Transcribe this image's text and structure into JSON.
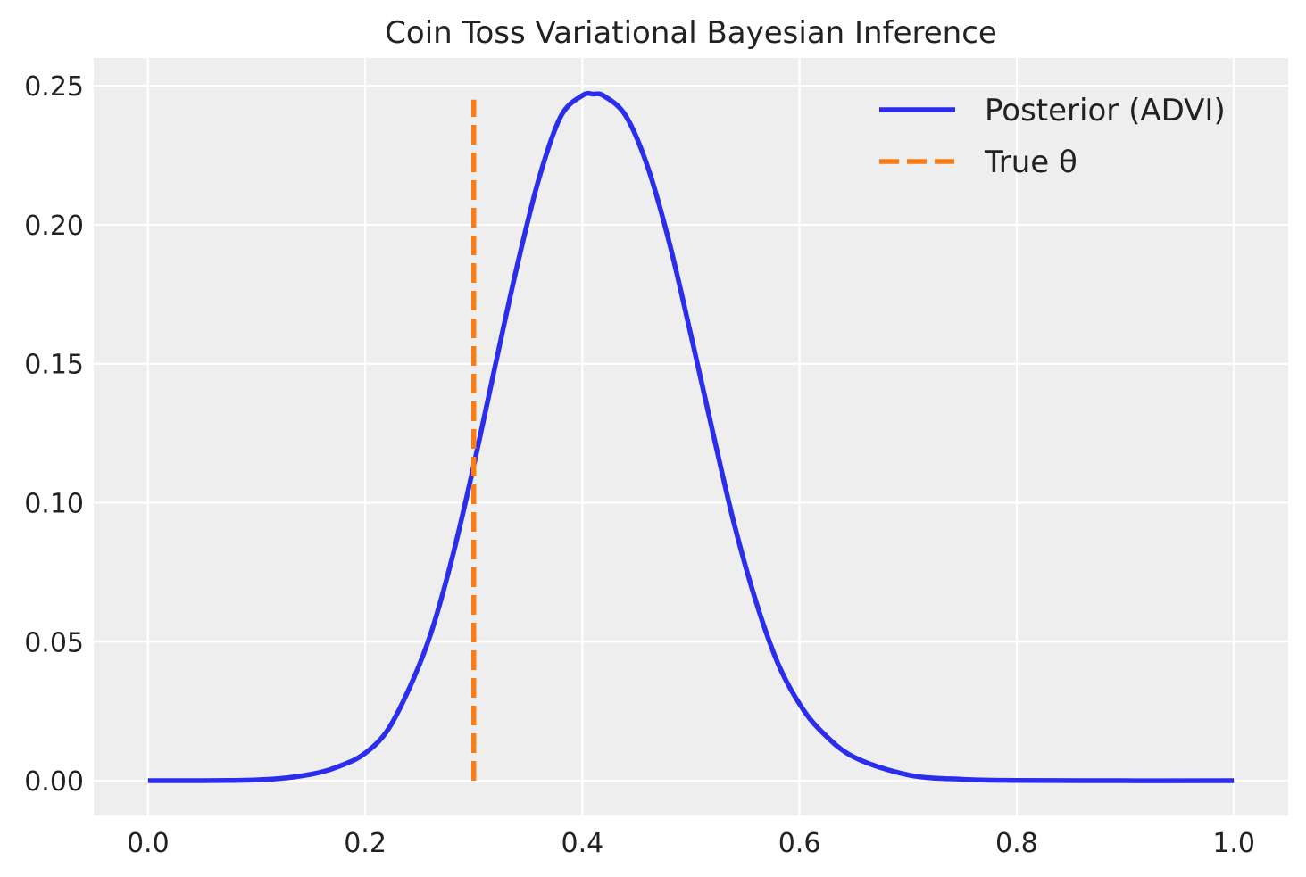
{
  "chart_data": {
    "type": "line",
    "title": "Coin Toss Variational Bayesian Inference",
    "xlabel": "",
    "ylabel": "",
    "xlim": [
      -0.05,
      1.05
    ],
    "ylim": [
      -0.0125,
      0.26
    ],
    "xticks": [
      0.0,
      0.2,
      0.4,
      0.6,
      0.8,
      1.0
    ],
    "xtick_labels": [
      "0.0",
      "0.2",
      "0.4",
      "0.6",
      "0.8",
      "1.0"
    ],
    "yticks": [
      0.0,
      0.05,
      0.1,
      0.15,
      0.2,
      0.25
    ],
    "ytick_labels": [
      "0.00",
      "0.05",
      "0.10",
      "0.15",
      "0.20",
      "0.25"
    ],
    "grid": true,
    "legend_position": "top-right",
    "series": [
      {
        "name": "Posterior (ADVI)",
        "style": "solid",
        "color": "#2a2eec",
        "x": [
          0.0,
          0.1,
          0.15,
          0.18,
          0.2,
          0.22,
          0.24,
          0.26,
          0.28,
          0.3,
          0.32,
          0.34,
          0.36,
          0.38,
          0.4,
          0.41,
          0.42,
          0.44,
          0.46,
          0.48,
          0.5,
          0.52,
          0.54,
          0.56,
          0.58,
          0.6,
          0.62,
          0.65,
          0.7,
          0.75,
          0.8,
          0.9,
          1.0
        ],
        "y": [
          0.0,
          0.0003,
          0.0023,
          0.0058,
          0.0099,
          0.0178,
          0.0327,
          0.0524,
          0.08,
          0.1134,
          0.1498,
          0.1853,
          0.2166,
          0.2389,
          0.2465,
          0.247,
          0.2463,
          0.2392,
          0.221,
          0.1937,
          0.1603,
          0.1256,
          0.0921,
          0.0643,
          0.0423,
          0.0276,
          0.0178,
          0.0085,
          0.0021,
          0.0005,
          0.0001,
          0.0,
          0.0
        ]
      },
      {
        "name": "True θ",
        "style": "dashed",
        "color": "#fa7c17",
        "x": [
          0.3,
          0.3
        ],
        "y": [
          0.0,
          0.245
        ]
      }
    ]
  }
}
